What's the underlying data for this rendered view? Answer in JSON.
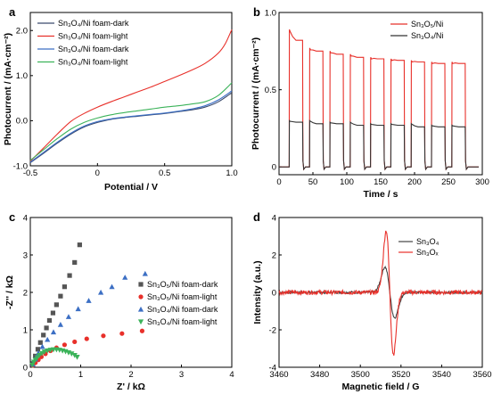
{
  "chart_data": [
    {
      "panel": "a",
      "type": "line",
      "xlabel": "Potential / V",
      "ylabel": "Photocurrent / (mA·cm⁻²)",
      "xlim": [
        -0.5,
        1.0
      ],
      "ylim": [
        -1.0,
        2.4
      ],
      "xticks": [
        -0.5,
        0.0,
        0.5,
        1.0
      ],
      "xtick_labels": [
        "-0.5",
        "0",
        "0.5",
        "1.0"
      ],
      "yticks": [
        -1.0,
        0.0,
        1.0,
        2.0
      ],
      "ytick_labels": [
        "-1.0",
        "0.0",
        "1.0",
        "2.0"
      ],
      "legend_position": "top-left",
      "series": [
        {
          "name": "Sn₃O₄/Ni foam-dark",
          "color": "#3a4a6e",
          "x": [
            -0.5,
            -0.4,
            -0.3,
            -0.2,
            -0.1,
            0.0,
            0.1,
            0.2,
            0.3,
            0.4,
            0.5,
            0.6,
            0.7,
            0.8,
            0.9,
            1.0
          ],
          "y": [
            -0.93,
            -0.72,
            -0.5,
            -0.3,
            -0.14,
            -0.04,
            0.03,
            0.07,
            0.1,
            0.13,
            0.16,
            0.2,
            0.24,
            0.3,
            0.42,
            0.62
          ]
        },
        {
          "name": "Sn₃O₄/Ni foam-light",
          "color": "#e8302a",
          "x": [
            -0.5,
            -0.4,
            -0.3,
            -0.2,
            -0.1,
            0.0,
            0.1,
            0.2,
            0.3,
            0.4,
            0.5,
            0.6,
            0.7,
            0.8,
            0.9,
            0.95,
            1.0
          ],
          "y": [
            -0.9,
            -0.6,
            -0.3,
            -0.02,
            0.16,
            0.3,
            0.42,
            0.53,
            0.64,
            0.75,
            0.87,
            0.99,
            1.12,
            1.27,
            1.5,
            1.7,
            2.02
          ]
        },
        {
          "name": "Sn₃O₄/Ni foam-dark",
          "color": "#3c6fc4",
          "x": [
            -0.5,
            -0.4,
            -0.3,
            -0.2,
            -0.1,
            0.0,
            0.1,
            0.2,
            0.3,
            0.4,
            0.5,
            0.6,
            0.7,
            0.8,
            0.9,
            1.0
          ],
          "y": [
            -0.92,
            -0.7,
            -0.48,
            -0.28,
            -0.12,
            -0.02,
            0.04,
            0.08,
            0.11,
            0.14,
            0.17,
            0.21,
            0.26,
            0.33,
            0.46,
            0.66
          ]
        },
        {
          "name": "Sn₃O₄/Ni foam-light",
          "color": "#3cb35a",
          "x": [
            -0.5,
            -0.4,
            -0.3,
            -0.2,
            -0.1,
            0.0,
            0.1,
            0.2,
            0.3,
            0.4,
            0.5,
            0.6,
            0.7,
            0.8,
            0.9,
            1.0
          ],
          "y": [
            -0.88,
            -0.64,
            -0.4,
            -0.19,
            -0.04,
            0.06,
            0.13,
            0.18,
            0.22,
            0.26,
            0.3,
            0.33,
            0.37,
            0.42,
            0.56,
            0.84
          ]
        }
      ]
    },
    {
      "panel": "b",
      "type": "line",
      "xlabel": "Time / s",
      "ylabel": "Photocurrent / (mA·cm⁻²)",
      "xlim": [
        0,
        300
      ],
      "ylim": [
        -0.05,
        1.0
      ],
      "xticks": [
        0,
        50,
        100,
        150,
        200,
        250,
        300
      ],
      "xtick_labels": [
        "0",
        "50",
        "100",
        "150",
        "200",
        "250",
        "300"
      ],
      "yticks": [
        0,
        0.5,
        1.0
      ],
      "ytick_labels": [
        "0",
        "0.5",
        "1.0"
      ],
      "legend_position": "top-right",
      "light_on_off": [
        [
          15,
          35
        ],
        [
          45,
          65
        ],
        [
          75,
          95
        ],
        [
          105,
          125
        ],
        [
          135,
          155
        ],
        [
          165,
          185
        ],
        [
          195,
          215
        ],
        [
          225,
          245
        ],
        [
          255,
          275
        ]
      ],
      "series": [
        {
          "name": "Sn₃O₅/Ni",
          "color": "#e8302a",
          "on_peak": [
            0.89,
            0.77,
            0.75,
            0.73,
            0.71,
            0.7,
            0.69,
            0.68,
            0.68
          ],
          "on_steady": [
            0.82,
            0.75,
            0.73,
            0.71,
            0.7,
            0.69,
            0.68,
            0.67,
            0.67
          ]
        },
        {
          "name": "Sn₃O₄/Ni",
          "color": "#333333",
          "on_peak": [
            0.3,
            0.3,
            0.29,
            0.29,
            0.28,
            0.28,
            0.28,
            0.27,
            0.27
          ],
          "on_steady": [
            0.29,
            0.28,
            0.28,
            0.27,
            0.27,
            0.27,
            0.26,
            0.26,
            0.26
          ]
        }
      ]
    },
    {
      "panel": "c",
      "type": "scatter",
      "xlabel": "Z' / kΩ",
      "ylabel": "-Z'' / kΩ",
      "xlim": [
        0,
        4
      ],
      "ylim": [
        0,
        4
      ],
      "xticks": [
        0,
        1,
        2,
        3,
        4
      ],
      "xtick_labels": [
        "0",
        "1",
        "2",
        "3",
        "4"
      ],
      "yticks": [
        0,
        1,
        2,
        3,
        4
      ],
      "ytick_labels": [
        "0",
        "1",
        "2",
        "3",
        "4"
      ],
      "legend_position": "right",
      "series": [
        {
          "name": "Sn₃O₅/Ni foam-dark",
          "color": "#555555",
          "marker": "square",
          "x": [
            0.05,
            0.1,
            0.15,
            0.2,
            0.26,
            0.32,
            0.38,
            0.45,
            0.52,
            0.6,
            0.68,
            0.78,
            0.88,
            0.98
          ],
          "y": [
            0.1,
            0.3,
            0.48,
            0.66,
            0.86,
            1.05,
            1.25,
            1.45,
            1.67,
            1.9,
            2.15,
            2.45,
            2.8,
            3.27
          ]
        },
        {
          "name": "Sn₃O₅/Ni foam-light",
          "color": "#e8302a",
          "marker": "circle",
          "x": [
            0.05,
            0.1,
            0.16,
            0.22,
            0.3,
            0.4,
            0.52,
            0.68,
            0.88,
            1.12,
            1.45,
            1.82,
            2.22
          ],
          "y": [
            0.05,
            0.12,
            0.2,
            0.28,
            0.36,
            0.44,
            0.52,
            0.6,
            0.68,
            0.76,
            0.84,
            0.9,
            0.97
          ]
        },
        {
          "name": "Sn₃O₄/Ni foam-dark",
          "color": "#3c6fc4",
          "marker": "triangle",
          "x": [
            0.05,
            0.1,
            0.16,
            0.24,
            0.34,
            0.46,
            0.6,
            0.76,
            0.95,
            1.16,
            1.4,
            1.62,
            1.88,
            2.28
          ],
          "y": [
            0.08,
            0.22,
            0.38,
            0.55,
            0.74,
            0.94,
            1.14,
            1.35,
            1.56,
            1.78,
            2.0,
            2.15,
            2.4,
            2.5
          ]
        },
        {
          "name": "Sn₃O₄/Ni foam-light",
          "color": "#3cb35a",
          "marker": "triangle-down",
          "x": [
            0.04,
            0.07,
            0.1,
            0.14,
            0.18,
            0.23,
            0.28,
            0.34,
            0.4,
            0.46,
            0.52,
            0.58,
            0.64,
            0.7,
            0.76,
            0.82,
            0.88,
            0.93
          ],
          "y": [
            0.06,
            0.14,
            0.2,
            0.26,
            0.32,
            0.37,
            0.41,
            0.44,
            0.46,
            0.47,
            0.47,
            0.46,
            0.44,
            0.42,
            0.39,
            0.36,
            0.32,
            0.27
          ]
        }
      ]
    },
    {
      "panel": "d",
      "type": "line",
      "xlabel": "Magnetic field / G",
      "ylabel": "Intensity (a.u.)",
      "xlim": [
        3460,
        3560
      ],
      "ylim": [
        -4,
        4
      ],
      "xticks": [
        3460,
        3480,
        3500,
        3520,
        3540,
        3560
      ],
      "xtick_labels": [
        "3460",
        "3480",
        "3500",
        "3520",
        "3540",
        "3560"
      ],
      "yticks": [
        -4,
        -2,
        0,
        2,
        4
      ],
      "ytick_labels": [
        "-4",
        "-2",
        "0",
        "2",
        "4"
      ],
      "legend_position": "top-right",
      "series": [
        {
          "name": "Sn₃O₄",
          "color": "#444444",
          "center": 3514.5,
          "amplitude": 1.35,
          "width": 2.4
        },
        {
          "name": "Sn₃Oₓ",
          "color": "#e8302a",
          "center": 3514.5,
          "amplitude": 3.3,
          "width": 1.8
        }
      ]
    }
  ],
  "panel_labels": [
    "a",
    "b",
    "c",
    "d"
  ]
}
